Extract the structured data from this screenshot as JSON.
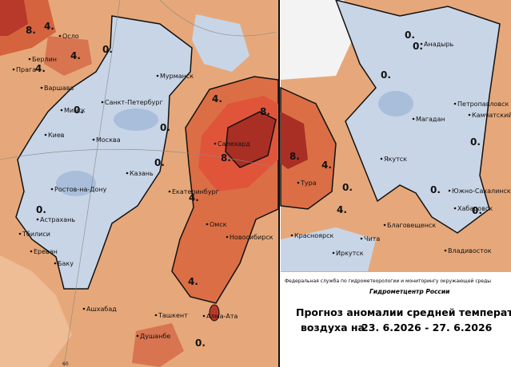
{
  "left_map": {
    "cities": [
      "Осло",
      "Берлин",
      "Прага",
      "Варшава",
      "Мурманск",
      "Санкт-Петербург",
      "Минск",
      "Киев",
      "Москва",
      "Казань",
      "Ростов-на-Дону",
      "Екатеринбург",
      "Салехард",
      "Астрахань",
      "Тбилиси",
      "Ереван",
      "Баку",
      "Омск",
      "Новосибирск",
      "Ашхабад",
      "Ташкент",
      "Алма-Ата",
      "Душанбе"
    ],
    "contour_labels": [
      "8.",
      "4.",
      "4.",
      "4.",
      "0.",
      "0.",
      "4.",
      "8.",
      "8.",
      "0.",
      "0.",
      "4.",
      "0.",
      "4.",
      "0."
    ],
    "meridian_label": "60"
  },
  "right_map": {
    "cities": [
      "Анадырь",
      "Петропавловск",
      "Камчатский",
      "Магадан",
      "Якутск",
      "Тура",
      "Южно-Сахалинск",
      "Хабаровск",
      "Благовещенск",
      "Красноярск",
      "Чита",
      "Иркутск",
      "Владивосток"
    ],
    "contour_labels": [
      "0.",
      "0.",
      "0.",
      "8.",
      "4.",
      "4.",
      "0.",
      "0.",
      "0.",
      "0."
    ]
  },
  "footer": {
    "agency": "Федеральная служба по гидрометеорологии и мониторингу окружающей среды",
    "center": "Гидрометцентр России",
    "title": "Прогноз аномалии средней температуры",
    "period_prefix": "воздуха на",
    "period": "23. 6.2026 - 27. 6.2026"
  }
}
